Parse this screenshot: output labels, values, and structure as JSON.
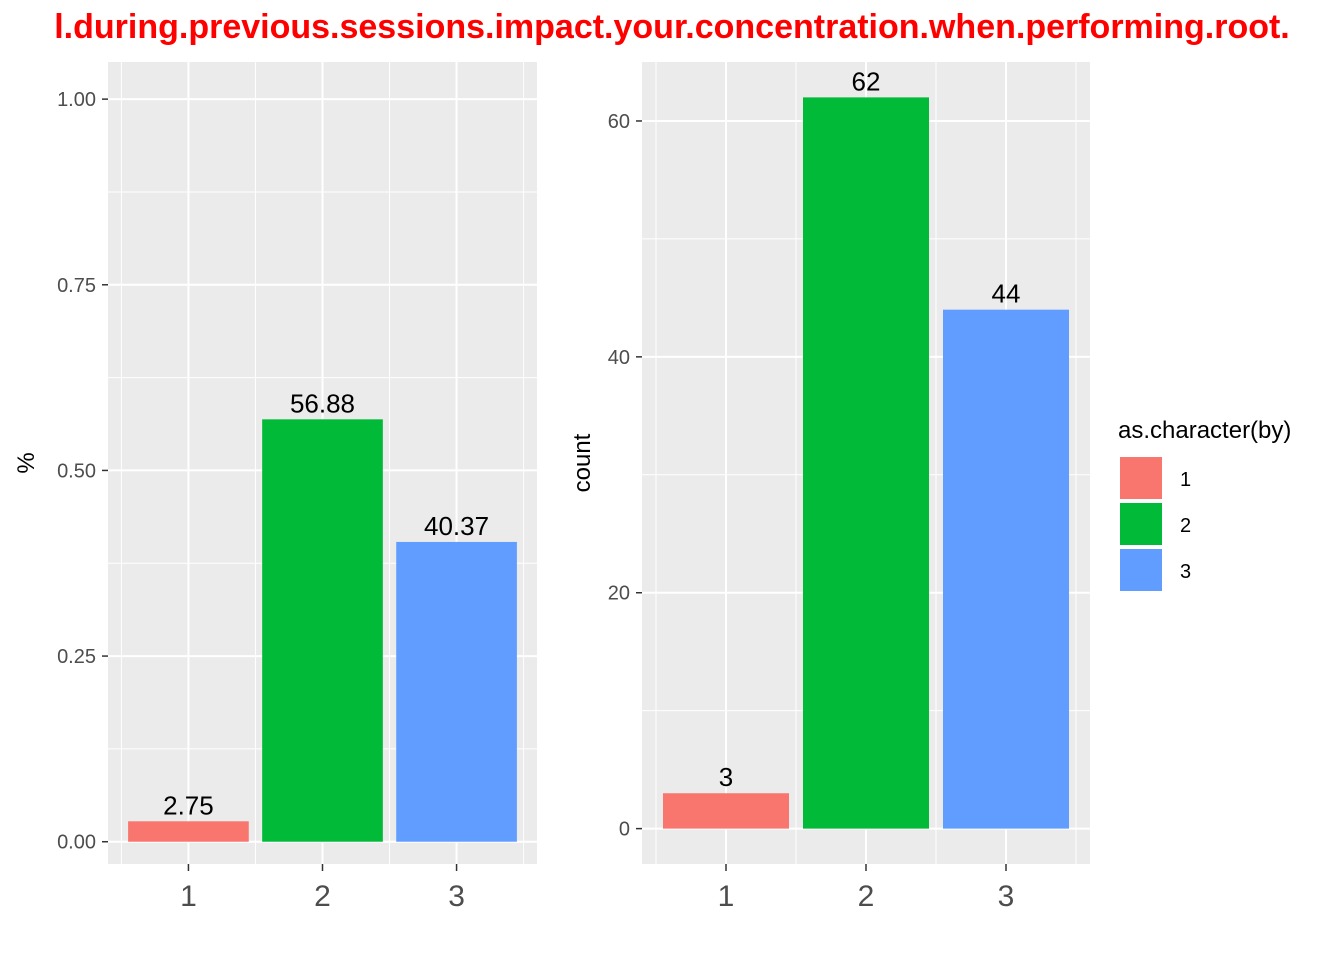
{
  "title": "l.during.previous.sessions.impact.your.concentration.when.performing.root.",
  "colors": {
    "1": "#F8766D",
    "2": "#00BA38",
    "3": "#619CFF",
    "panel": "#EBEBEB",
    "grid": "#FFFFFF"
  },
  "legend": {
    "title": "as.character(by)",
    "items": [
      {
        "label": "1",
        "color": "#F8766D"
      },
      {
        "label": "2",
        "color": "#00BA38"
      },
      {
        "label": "3",
        "color": "#619CFF"
      }
    ],
    "placement": "right"
  },
  "chart_data": [
    {
      "type": "bar",
      "categories": [
        "1",
        "2",
        "3"
      ],
      "values": [
        0.0275,
        0.5688,
        0.4037
      ],
      "labels": [
        "2.75",
        "56.88",
        "40.37"
      ],
      "ylabel": "%",
      "xlabel": "",
      "ylim": [
        -0.03,
        1.05
      ],
      "yticks": [
        0.0,
        0.25,
        0.5,
        0.75,
        1.0
      ],
      "ytick_labels": [
        "0.00",
        "0.25",
        "0.50",
        "0.75",
        "1.00"
      ],
      "grid": true
    },
    {
      "type": "bar",
      "categories": [
        "1",
        "2",
        "3"
      ],
      "values": [
        3,
        62,
        44
      ],
      "labels": [
        "3",
        "62",
        "44"
      ],
      "ylabel": "count",
      "xlabel": "",
      "ylim": [
        -3,
        65
      ],
      "yticks": [
        0,
        20,
        40,
        60
      ],
      "ytick_labels": [
        "0",
        "20",
        "40",
        "60"
      ],
      "grid": true
    }
  ]
}
